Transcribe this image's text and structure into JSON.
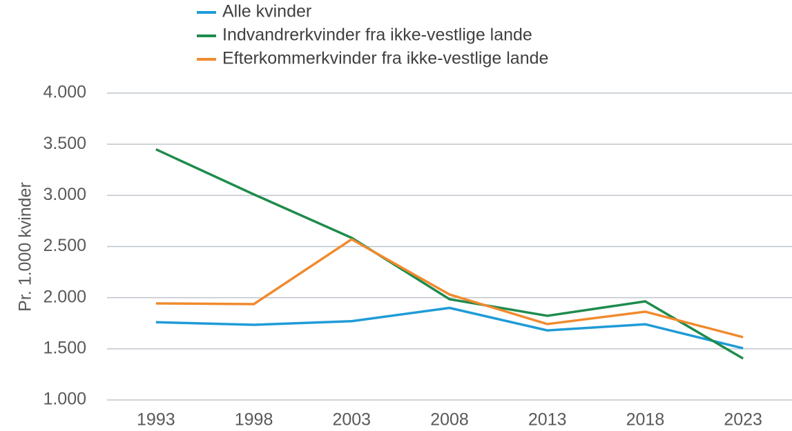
{
  "chart_data": {
    "type": "line",
    "y_label": "Pr. 1.000 kvinder",
    "categories": [
      "1993",
      "1998",
      "2003",
      "2008",
      "2013",
      "2018",
      "2023"
    ],
    "series": [
      {
        "name": "Alle kvinder",
        "color": "#1f9bd7",
        "values": [
          1760,
          1735,
          1770,
          1900,
          1680,
          1740,
          1505
        ]
      },
      {
        "name": "Indvandrerkvinder fra ikke-vestlige lande",
        "color": "#1e8b4c",
        "values": [
          3450,
          3010,
          2585,
          1985,
          1823,
          1964,
          1405
        ]
      },
      {
        "name": "Efterkommerkvinder fra ikke-vestlige lande",
        "color": "#f08a2e",
        "values": [
          1944,
          1937,
          2571,
          2031,
          1742,
          1863,
          1614
        ]
      }
    ],
    "ylim": [
      1000,
      4000
    ],
    "yticks": [
      {
        "value": 1000,
        "label": "1.000"
      },
      {
        "value": 1500,
        "label": "1.500"
      },
      {
        "value": 2000,
        "label": "2.000"
      },
      {
        "value": 2500,
        "label": "2.500"
      },
      {
        "value": 3000,
        "label": "3.000"
      },
      {
        "value": 3500,
        "label": "3.500"
      },
      {
        "value": 4000,
        "label": "4.000"
      }
    ],
    "grid": true
  }
}
